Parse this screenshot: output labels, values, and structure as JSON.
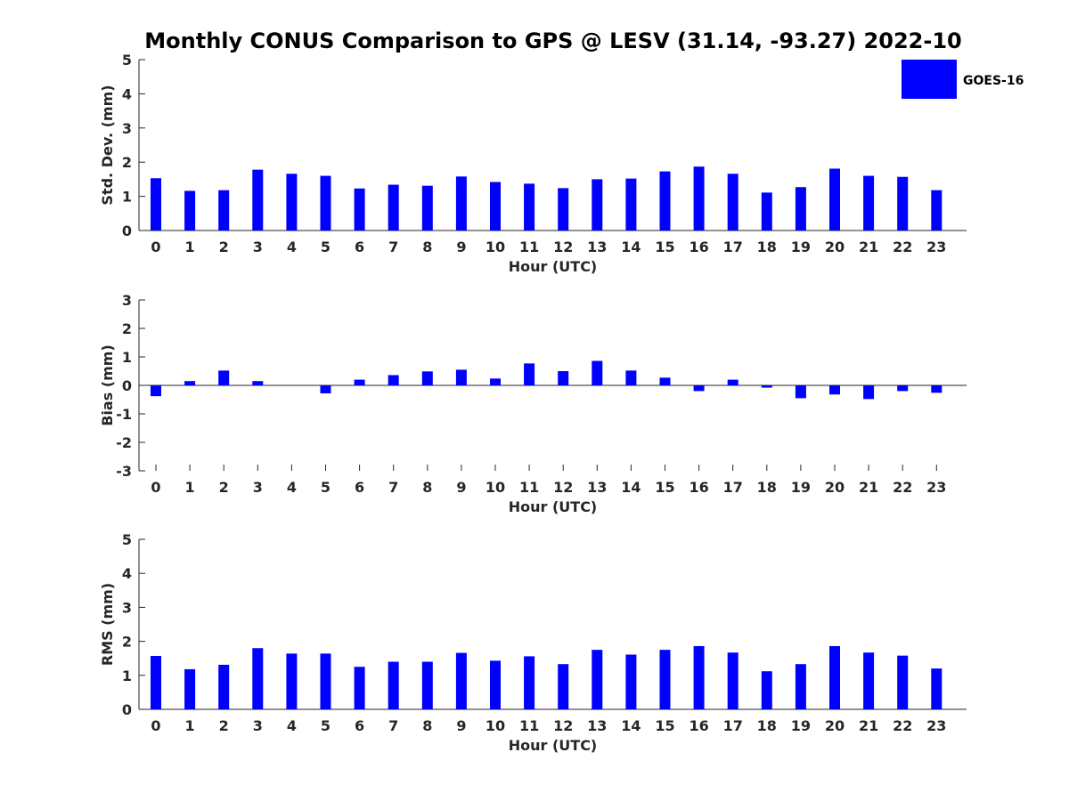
{
  "title": "Monthly CONUS Comparison to GPS @ LESV (31.14, -93.27) 2022-10",
  "legend": {
    "label": "GOES-16",
    "color": "#0000ff",
    "placement": "top-right"
  },
  "chart_data": [
    {
      "type": "bar",
      "xlabel": "Hour (UTC)",
      "ylabel": "Std. Dev. (mm)",
      "ylim": [
        0,
        5
      ],
      "yticks": [
        0,
        1,
        2,
        3,
        4,
        5
      ],
      "categories": [
        "0",
        "1",
        "2",
        "3",
        "4",
        "5",
        "6",
        "7",
        "8",
        "9",
        "10",
        "11",
        "12",
        "13",
        "14",
        "15",
        "16",
        "17",
        "18",
        "19",
        "20",
        "21",
        "22",
        "23"
      ],
      "series": [
        {
          "name": "GOES-16",
          "color": "#0000ff",
          "values": [
            1.53,
            1.16,
            1.18,
            1.78,
            1.66,
            1.6,
            1.23,
            1.34,
            1.31,
            1.58,
            1.42,
            1.37,
            1.24,
            1.5,
            1.52,
            1.73,
            1.87,
            1.66,
            1.11,
            1.27,
            1.81,
            1.6,
            1.57,
            1.18
          ]
        }
      ],
      "grid": false
    },
    {
      "type": "bar",
      "xlabel": "Hour (UTC)",
      "ylabel": "Bias (mm)",
      "ylim": [
        -3,
        3
      ],
      "yticks": [
        -3,
        -2,
        -1,
        0,
        1,
        2,
        3
      ],
      "categories": [
        "0",
        "1",
        "2",
        "3",
        "4",
        "5",
        "6",
        "7",
        "8",
        "9",
        "10",
        "11",
        "12",
        "13",
        "14",
        "15",
        "16",
        "17",
        "18",
        "19",
        "20",
        "21",
        "22",
        "23"
      ],
      "series": [
        {
          "name": "GOES-16",
          "color": "#0000ff",
          "values": [
            -0.38,
            0.15,
            0.52,
            0.15,
            0.0,
            -0.28,
            0.2,
            0.36,
            0.49,
            0.55,
            0.24,
            0.77,
            0.5,
            0.86,
            0.52,
            0.27,
            -0.2,
            0.2,
            -0.08,
            -0.45,
            -0.32,
            -0.48,
            -0.2,
            -0.26
          ]
        }
      ],
      "grid": false
    },
    {
      "type": "bar",
      "xlabel": "Hour (UTC)",
      "ylabel": "RMS (mm)",
      "ylim": [
        0,
        5
      ],
      "yticks": [
        0,
        1,
        2,
        3,
        4,
        5
      ],
      "categories": [
        "0",
        "1",
        "2",
        "3",
        "4",
        "5",
        "6",
        "7",
        "8",
        "9",
        "10",
        "11",
        "12",
        "13",
        "14",
        "15",
        "16",
        "17",
        "18",
        "19",
        "20",
        "21",
        "22",
        "23"
      ],
      "series": [
        {
          "name": "GOES-16",
          "color": "#0000ff",
          "values": [
            1.57,
            1.18,
            1.31,
            1.8,
            1.64,
            1.64,
            1.25,
            1.4,
            1.4,
            1.66,
            1.43,
            1.56,
            1.33,
            1.75,
            1.61,
            1.75,
            1.86,
            1.67,
            1.12,
            1.33,
            1.86,
            1.67,
            1.58,
            1.2
          ]
        }
      ],
      "grid": false
    }
  ]
}
